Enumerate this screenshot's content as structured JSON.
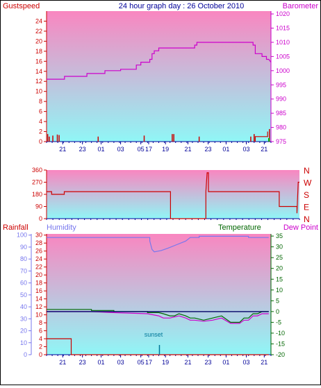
{
  "title": "24 hour graph day : 26 October 2010",
  "colors": {
    "gust": "#cc0000",
    "pressure": "#cc00cc",
    "wind_dir": "#cc0000",
    "rain": "#cc0000",
    "humidity": "#7777ee",
    "temperature": "#006600",
    "dew_point": "#cc00cc",
    "sunset": "#007799",
    "bg_top": "#f986c0",
    "bg_bottom": "#90f6f6",
    "axis_x": "#000099"
  },
  "x_ticks": [
    "21",
    "23",
    "01",
    "03",
    "05",
    "17",
    "19",
    "21",
    "23",
    "01",
    "03",
    "21"
  ],
  "chart_data": [
    {
      "type": "line",
      "name": "gust-pressure",
      "labels": {
        "left": "Gustspeed",
        "right": "Barometer"
      },
      "y_left": {
        "ticks": [
          "0",
          "2",
          "4",
          "6",
          "8",
          "10",
          "12",
          "14",
          "16",
          "18",
          "20",
          "22",
          "24"
        ],
        "range": [
          0,
          26
        ]
      },
      "y_right": {
        "ticks": [
          "975",
          "980",
          "985",
          "990",
          "995",
          "1000",
          "1005",
          "1010",
          "1015",
          "1020"
        ],
        "range": [
          975,
          1021
        ]
      },
      "series": [
        {
          "key": "pressure",
          "axis": "right",
          "points": [
            [
              0,
              997
            ],
            [
              8,
              997
            ],
            [
              8,
              998
            ],
            [
              18,
              998
            ],
            [
              18,
              999
            ],
            [
              26,
              999
            ],
            [
              26,
              1000
            ],
            [
              33,
              1000
            ],
            [
              33,
              1000.5
            ],
            [
              40,
              1000.5
            ],
            [
              40,
              1002
            ],
            [
              42,
              1002
            ],
            [
              42,
              1003
            ],
            [
              46,
              1003
            ],
            [
              46,
              1004
            ],
            [
              47,
              1004
            ],
            [
              47,
              1006
            ],
            [
              48,
              1006
            ],
            [
              48,
              1007
            ],
            [
              50,
              1007
            ],
            [
              50,
              1008
            ],
            [
              66,
              1008
            ],
            [
              66,
              1009
            ],
            [
              67,
              1009
            ],
            [
              67,
              1010
            ],
            [
              92,
              1010
            ],
            [
              92,
              1009
            ],
            [
              93,
              1009
            ],
            [
              93,
              1006
            ],
            [
              96,
              1006
            ],
            [
              96,
              1005
            ],
            [
              98,
              1005
            ],
            [
              98,
              1004
            ],
            [
              99,
              1004
            ],
            [
              100,
              1003
            ]
          ]
        },
        {
          "key": "gust",
          "axis": "left",
          "type": "bar",
          "points": [
            [
              0.5,
              1.5
            ],
            [
              1.2,
              1
            ],
            [
              2.8,
              1.2
            ],
            [
              4.8,
              1.4
            ],
            [
              5.6,
              1.3
            ],
            [
              23,
              1
            ],
            [
              43.5,
              1.2
            ],
            [
              56,
              1.5
            ],
            [
              56.7,
              1.5
            ],
            [
              68,
              1
            ],
            [
              91,
              1
            ],
            [
              92.5,
              1.5
            ],
            [
              99.3,
              2.5
            ]
          ]
        },
        {
          "key": "gust",
          "axis": "left",
          "type": "step",
          "points": [
            [
              93,
              0
            ],
            [
              93,
              1
            ],
            [
              98.5,
              1
            ],
            [
              98.5,
              2
            ]
          ]
        }
      ]
    },
    {
      "type": "line",
      "name": "wind-direction",
      "labels": {
        "right_letters": [
          "N",
          "W",
          "S",
          "E",
          "N"
        ]
      },
      "y_left": {
        "ticks": [
          "0",
          "90",
          "180",
          "270",
          "360"
        ],
        "range": [
          0,
          360
        ]
      },
      "series": [
        {
          "key": "wind_dir",
          "points": [
            [
              0,
              200
            ],
            [
              2,
              200
            ],
            [
              2,
              180
            ],
            [
              7,
              180
            ],
            [
              7,
              200
            ],
            [
              49,
              200
            ],
            [
              49,
              0
            ],
            [
              63,
              0
            ],
            [
              63,
              200
            ],
            [
              63.5,
              340
            ],
            [
              64,
              340
            ],
            [
              64,
              200
            ],
            [
              92,
              200
            ],
            [
              92,
              90
            ],
            [
              99,
              90
            ],
            [
              99,
              40
            ],
            [
              99.5,
              270
            ],
            [
              100,
              270
            ]
          ]
        }
      ]
    },
    {
      "type": "line",
      "name": "rain-humidity-temperature-dewpoint",
      "labels": {
        "rain": "Rainfall",
        "humidity": "Humidity",
        "temperature": "Temperature",
        "dew_point": "Dew Point",
        "sunset": "sunset"
      },
      "y_humidity": {
        "ticks": [
          "0",
          "10",
          "20",
          "30",
          "40",
          "50",
          "60",
          "70",
          "80",
          "90",
          "100"
        ],
        "range": [
          0,
          101
        ]
      },
      "y_rain": {
        "ticks": [
          "0",
          "2",
          "4",
          "6",
          "8",
          "10",
          "12",
          "14",
          "16",
          "18",
          "20",
          "22",
          "24",
          "26",
          "28",
          "30"
        ],
        "range": [
          0,
          30.3
        ]
      },
      "y_temp": {
        "ticks": [
          "-20",
          "-15",
          "-10",
          "-5",
          "0",
          "5",
          "10",
          "15",
          "20",
          "25",
          "30",
          "35"
        ],
        "range": [
          -20,
          36
        ]
      },
      "sunset_x": 50.3,
      "series": [
        {
          "key": "humidity",
          "axis": "humidity",
          "points": [
            [
              0,
              98
            ],
            [
              46,
              98
            ],
            [
              46,
              95
            ],
            [
              47,
              88
            ],
            [
              48,
              86
            ],
            [
              51,
              87
            ],
            [
              54,
              89
            ],
            [
              58,
              92
            ],
            [
              62,
              95
            ],
            [
              64,
              98
            ],
            [
              68,
              98
            ],
            [
              68,
              99
            ],
            [
              70,
              99
            ],
            [
              90,
              99
            ],
            [
              90,
              98
            ],
            [
              99,
              98
            ]
          ]
        },
        {
          "key": "temperature",
          "axis": "temp",
          "points": [
            [
              0,
              1
            ],
            [
              20,
              1
            ],
            [
              20,
              0.5
            ],
            [
              30,
              0.5
            ],
            [
              30,
              0
            ],
            [
              45,
              0
            ],
            [
              45,
              -0.5
            ],
            [
              50,
              -0.5
            ],
            [
              52,
              -1
            ],
            [
              55,
              -2
            ],
            [
              57,
              -2
            ],
            [
              59,
              -1
            ],
            [
              62,
              -2
            ],
            [
              64,
              -3
            ],
            [
              66,
              -3
            ],
            [
              70,
              -4
            ],
            [
              74,
              -3
            ],
            [
              78,
              -2
            ],
            [
              82,
              -5
            ],
            [
              86,
              -5
            ],
            [
              88,
              -3
            ],
            [
              90,
              -3
            ],
            [
              92,
              -1
            ],
            [
              94,
              -1
            ],
            [
              96,
              0
            ],
            [
              99,
              0
            ]
          ]
        },
        {
          "key": "dew_point",
          "axis": "temp",
          "points": [
            [
              0,
              0
            ],
            [
              20,
              0
            ],
            [
              30,
              -0.5
            ],
            [
              45,
              -1
            ],
            [
              50,
              -2
            ],
            [
              52,
              -3
            ],
            [
              55,
              -3
            ],
            [
              57,
              -2.5
            ],
            [
              59,
              -2
            ],
            [
              62,
              -3
            ],
            [
              64,
              -4
            ],
            [
              66,
              -4
            ],
            [
              70,
              -4.5
            ],
            [
              74,
              -4
            ],
            [
              78,
              -3
            ],
            [
              82,
              -5.5
            ],
            [
              86,
              -5.5
            ],
            [
              88,
              -4
            ],
            [
              90,
              -4
            ],
            [
              92,
              -2
            ],
            [
              94,
              -2
            ],
            [
              96,
              -1
            ],
            [
              99,
              -1
            ]
          ]
        },
        {
          "key": "reference",
          "axis": "temp",
          "points": [
            [
              0,
              0
            ],
            [
              99,
              0
            ]
          ]
        },
        {
          "key": "rain",
          "axis": "rain",
          "points": [
            [
              0,
              4
            ],
            [
              11,
              4
            ],
            [
              11,
              0
            ],
            [
              99,
              0
            ]
          ]
        }
      ]
    }
  ]
}
